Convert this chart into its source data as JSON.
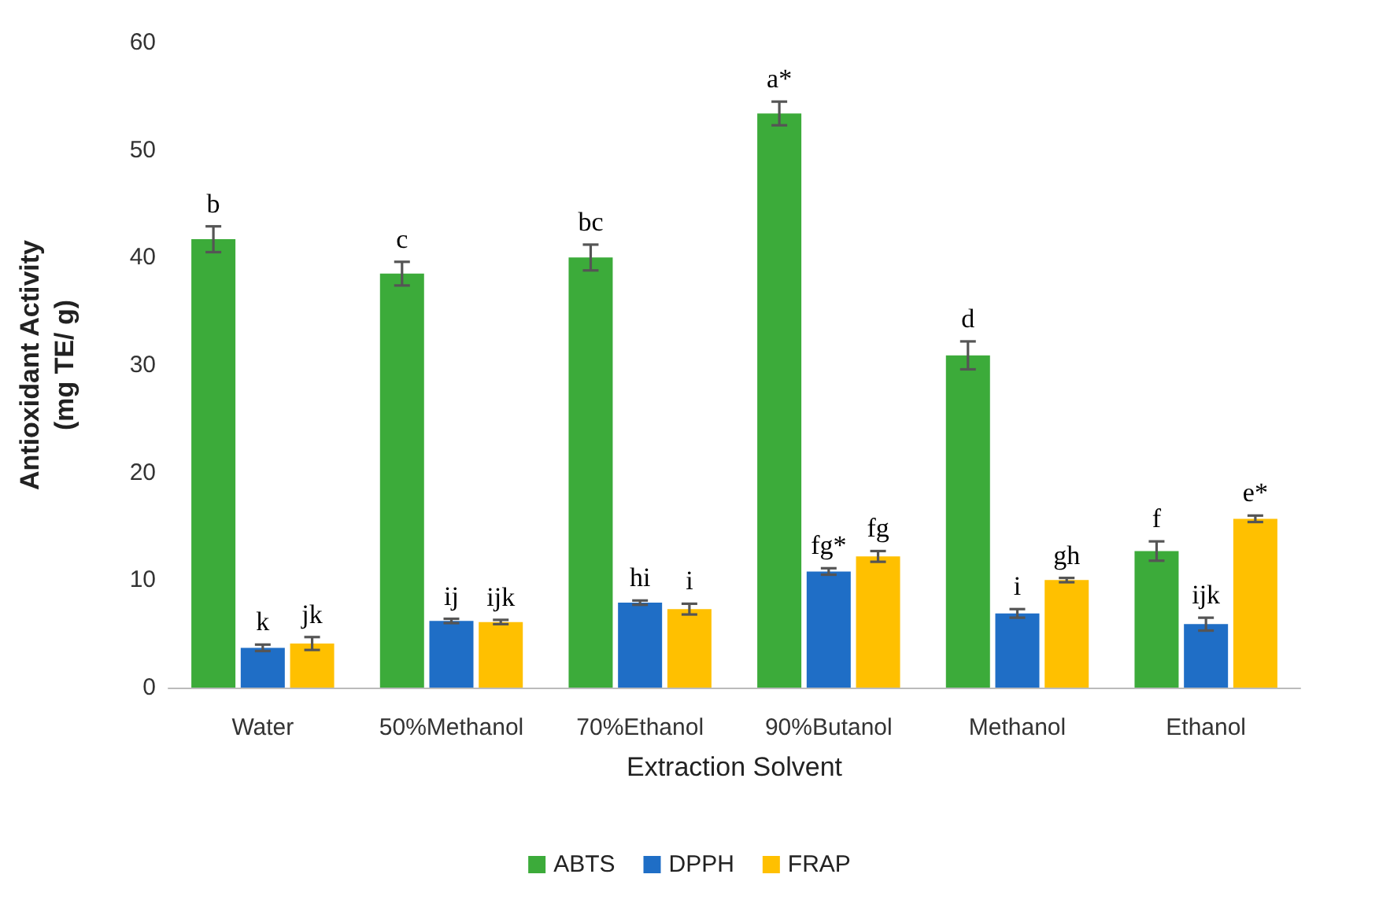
{
  "chart_data": {
    "type": "bar",
    "xlabel": "Extraction Solvent",
    "ylabel": "Antioxidant Activity\n(mg TE/ g)",
    "categories": [
      "Water",
      "50%Methanol",
      "70%Ethanol",
      "90%Butanol",
      "Methanol",
      "Ethanol"
    ],
    "series": [
      {
        "name": "ABTS",
        "color": "#3cab3a",
        "values": [
          41.7,
          38.5,
          40.0,
          53.4,
          30.9,
          12.7
        ],
        "errors": [
          1.2,
          1.1,
          1.2,
          1.1,
          1.3,
          0.9
        ],
        "value_labels": [
          "b",
          "c",
          "bc",
          "a*",
          "d",
          "f"
        ]
      },
      {
        "name": "DPPH",
        "color": "#1f6ec6",
        "values": [
          3.7,
          6.2,
          7.9,
          10.8,
          6.9,
          5.9
        ],
        "errors": [
          0.3,
          0.2,
          0.2,
          0.3,
          0.4,
          0.6
        ],
        "value_labels": [
          "k",
          "ij",
          "hi",
          "fg*",
          "i",
          "ijk"
        ]
      },
      {
        "name": "FRAP",
        "color": "#ffc000",
        "values": [
          4.1,
          6.1,
          7.3,
          12.2,
          10.0,
          15.7
        ],
        "errors": [
          0.6,
          0.2,
          0.5,
          0.5,
          0.2,
          0.3
        ],
        "value_labels": [
          "jk",
          "ijk",
          "i",
          "fg",
          "gh",
          "e*"
        ]
      }
    ],
    "ylim": [
      0,
      60
    ],
    "yticks": [
      0,
      10,
      20,
      30,
      40,
      50,
      60
    ],
    "grid": false,
    "legend": "bottom"
  }
}
